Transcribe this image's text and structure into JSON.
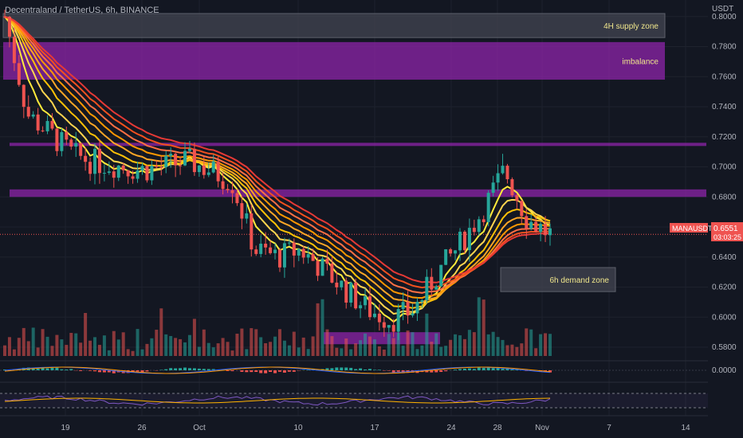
{
  "header": {
    "symbol_title": "Decentraland / TetherUS, 6h, BINANCE"
  },
  "colors": {
    "background": "#131722",
    "bull": "#26a69a",
    "bear": "#ef5350",
    "zone_purple": "#8e24aa",
    "zone_gray": "#434651",
    "price_tag": "#ef5350"
  },
  "chart_data": {
    "type": "candlestick",
    "price_axis": {
      "unit_label": "USDT",
      "ticks": [
        "0.8000",
        "0.7800",
        "0.7600",
        "0.7400",
        "0.7200",
        "0.7000",
        "0.6800",
        "0.6600",
        "0.6400",
        "0.6200",
        "0.6000",
        "0.5800"
      ],
      "ylim": [
        0.571,
        0.811
      ]
    },
    "time_axis": {
      "ticks": [
        "19",
        "26",
        "Oct",
        "10",
        "17",
        "24",
        "28",
        "Nov",
        "7",
        "14"
      ]
    },
    "last_price": {
      "symbol": "MANAUSDT",
      "value": "0.6551",
      "countdown": "03:03:25"
    },
    "ohlc_anchor_closes": [
      0.8,
      0.735,
      0.722,
      0.708,
      0.703,
      0.701,
      0.698,
      0.7,
      0.704,
      0.698,
      0.69,
      0.645,
      0.64,
      0.645,
      0.632,
      0.618,
      0.605,
      0.598,
      0.605,
      0.628,
      0.648,
      0.67,
      0.698,
      0.665,
      0.6551
    ],
    "zones": [
      {
        "label": "4H supply zone",
        "top": 0.802,
        "bottom": 0.786,
        "color": "gray"
      },
      {
        "label": "imbalance",
        "top": 0.783,
        "bottom": 0.758,
        "color": "purple"
      },
      {
        "label": "",
        "top": 0.716,
        "bottom": 0.714,
        "color": "purple"
      },
      {
        "label": "",
        "top": 0.685,
        "bottom": 0.68,
        "color": "purple"
      },
      {
        "label": "6h demand zone",
        "top": 0.633,
        "bottom": 0.617,
        "color": "gray"
      },
      {
        "label": "",
        "top": 0.59,
        "bottom": 0.582,
        "color": "purple"
      }
    ],
    "oscillator_1": {
      "zero_label": "0.0000"
    }
  }
}
